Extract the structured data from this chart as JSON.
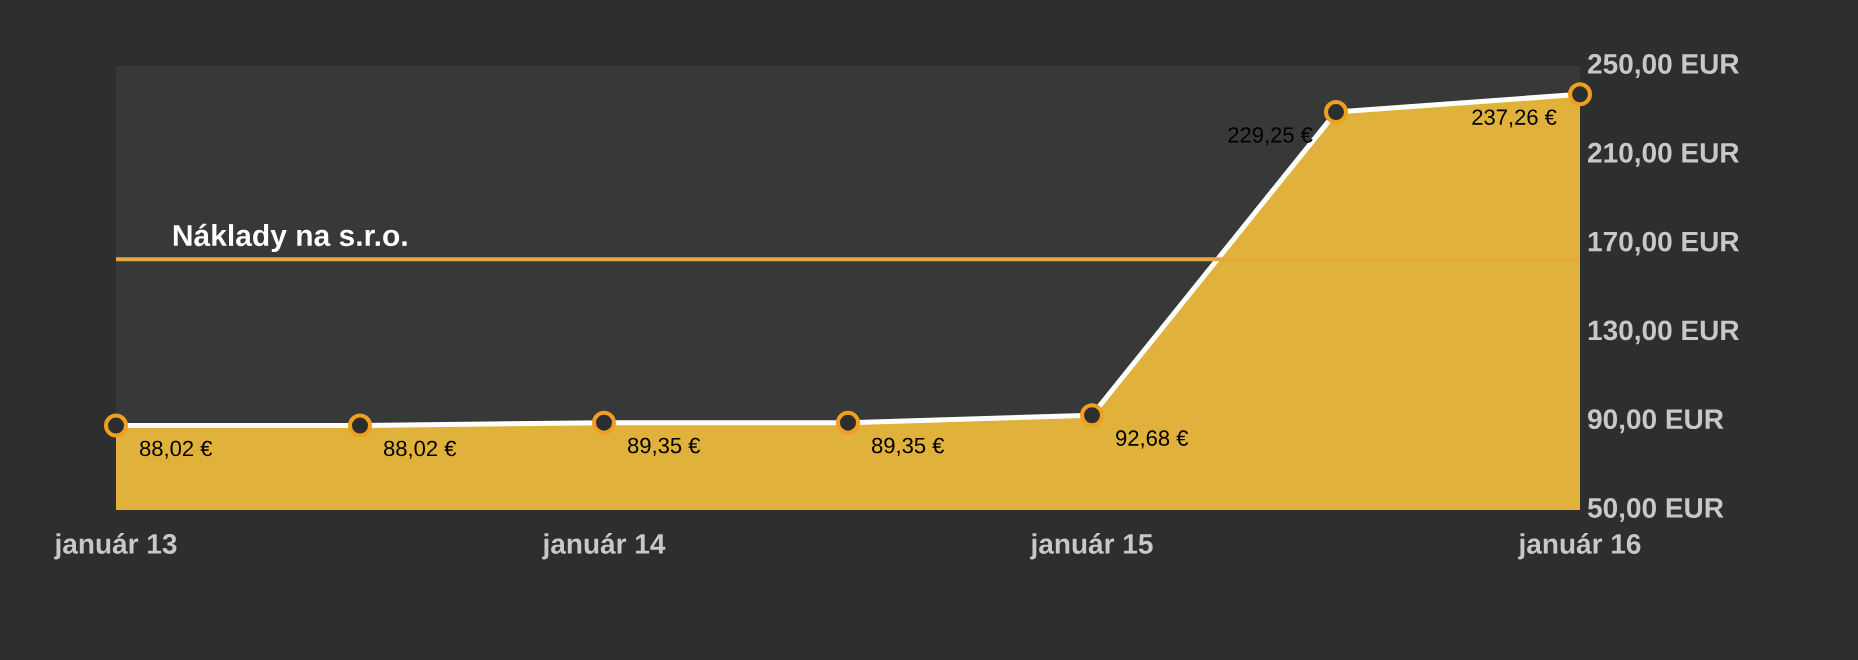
{
  "chart_data": {
    "type": "area",
    "categories": [
      "január 13",
      null,
      "január 14",
      null,
      "január 15",
      null,
      "január 16"
    ],
    "values": [
      88.02,
      88.02,
      89.35,
      89.35,
      92.68,
      229.25,
      237.26
    ],
    "value_labels": [
      "88,02 €",
      "88,02 €",
      "89,35 €",
      "89,35 €",
      "92,68 €",
      "229,25 €",
      "237,26 €"
    ],
    "color": "#e0b23c",
    "marker": "circle",
    "grid": false,
    "ylim": [
      50,
      250
    ],
    "yticks": [
      {
        "value": 50,
        "label": "50,00 EUR"
      },
      {
        "value": 90,
        "label": "90,00 EUR"
      },
      {
        "value": 130,
        "label": "130,00 EUR"
      },
      {
        "value": 170,
        "label": "170,00 EUR"
      },
      {
        "value": 210,
        "label": "210,00 EUR"
      },
      {
        "value": 250,
        "label": "250,00 EUR"
      }
    ],
    "ref_lines": [
      {
        "axis": "y",
        "value": 163,
        "label": "Náklady na s.r.o.",
        "color": "#e8a838"
      }
    ]
  }
}
